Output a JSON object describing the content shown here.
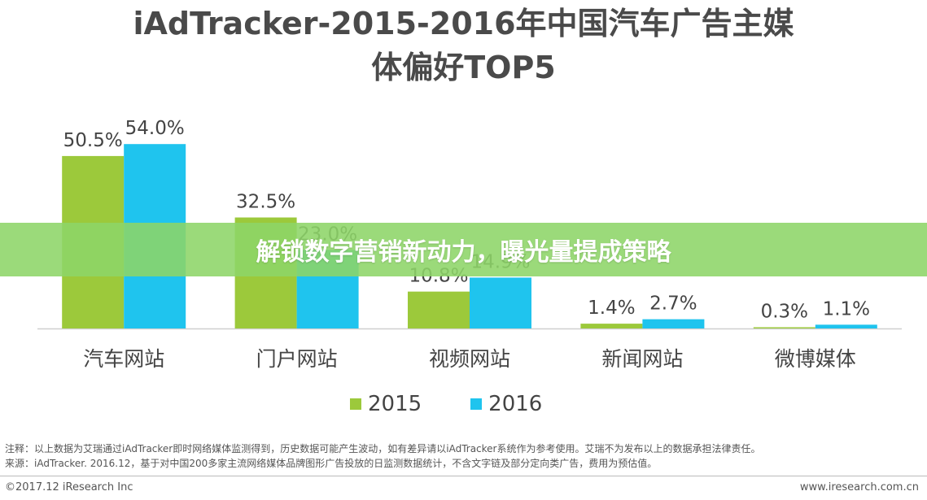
{
  "chart_data": {
    "type": "bar",
    "title_line1": "iAdTracker-2015-2016年中国汽车广告主媒",
    "title_line2": "体偏好TOP5",
    "categories": [
      "汽车网站",
      "门户网站",
      "视频网站",
      "新闻网站",
      "微博媒体"
    ],
    "series": [
      {
        "name": "2015",
        "color": "#9cc93b",
        "values": [
          50.5,
          32.5,
          10.8,
          1.4,
          0.3
        ],
        "labels": [
          "50.5%",
          "32.5%",
          "10.8%",
          "1.4%",
          "0.3%"
        ]
      },
      {
        "name": "2016",
        "color": "#1fc4ee",
        "values": [
          54.0,
          23.0,
          14.9,
          2.7,
          1.1
        ],
        "labels": [
          "54.0%",
          "23.0%",
          "14.9%",
          "2.7%",
          "1.1%"
        ]
      }
    ],
    "ylim": [
      0,
      60
    ],
    "grid": false,
    "legend": "bottom"
  },
  "notes": {
    "line1": "注释：以上数据为艾瑞通过iAdTracker即时网络媒体监测得到，历史数据可能产生波动，如有差异请以iAdTracker系统作为参考使用。艾瑞不为发布以上的数据承担法律责任。",
    "line2": "来源：iAdTracker. 2016.12，基于对中国200多家主流网络媒体品牌图形广告投放的日监测数据统计，不含文字链及部分定向类广告，费用为预估值。"
  },
  "footer": {
    "left": "©2017.12 iResearch Inc",
    "right": "www.iresearch.com.cn"
  },
  "banner": {
    "text": "解锁数字营销新动力，曝光量提成策略"
  }
}
